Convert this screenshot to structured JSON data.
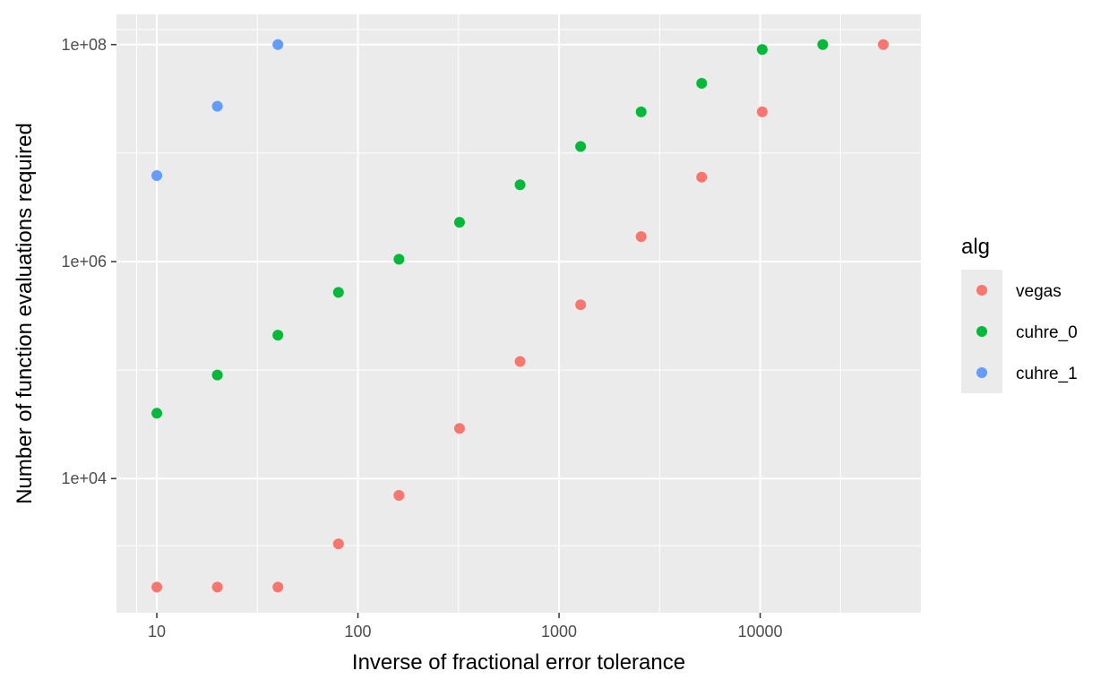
{
  "chart_data": {
    "type": "scatter",
    "title": "",
    "xlabel": "Inverse of fractional error tolerance",
    "ylabel": "Number of function evaluations required",
    "x_scale": "log10",
    "y_scale": "log10",
    "xlim": [
      6.3,
      63000
    ],
    "ylim": [
      580,
      190000000
    ],
    "x_ticks": [
      10,
      100,
      1000,
      10000
    ],
    "x_tick_labels": [
      "10",
      "100",
      "1000",
      "10000"
    ],
    "y_ticks": [
      10000,
      1000000,
      100000000
    ],
    "y_tick_labels": [
      "1e+04",
      "1e+06",
      "1e+08"
    ],
    "grid": true,
    "legend": {
      "title": "alg",
      "position": "right"
    },
    "series": [
      {
        "name": "vegas",
        "color": "#F8766D",
        "points": [
          [
            10,
            1000
          ],
          [
            20,
            1000
          ],
          [
            40,
            1000
          ],
          [
            80,
            2500
          ],
          [
            160,
            7000
          ],
          [
            320,
            29000
          ],
          [
            640,
            120000
          ],
          [
            1280,
            400000
          ],
          [
            2560,
            1700000
          ],
          [
            5120,
            6000000
          ],
          [
            10240,
            24000000
          ],
          [
            40960,
            100000000
          ]
        ]
      },
      {
        "name": "cuhre_0",
        "color": "#00BA38",
        "points": [
          [
            10,
            40000
          ],
          [
            20,
            90000
          ],
          [
            40,
            210000
          ],
          [
            80,
            520000
          ],
          [
            160,
            1050000
          ],
          [
            320,
            2300000
          ],
          [
            640,
            5100000
          ],
          [
            1280,
            11500000
          ],
          [
            2560,
            24000000
          ],
          [
            5120,
            44000000
          ],
          [
            10240,
            90000000
          ],
          [
            20480,
            100000000
          ]
        ]
      },
      {
        "name": "cuhre_1",
        "color": "#619CFF",
        "points": [
          [
            10,
            6200000
          ],
          [
            20,
            27000000
          ],
          [
            40,
            100000000
          ]
        ]
      }
    ]
  }
}
